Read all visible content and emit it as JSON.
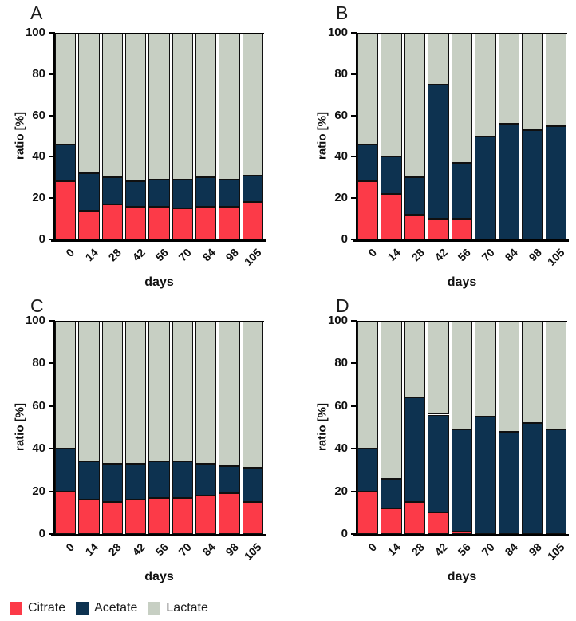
{
  "legend": {
    "items": [
      {
        "label": "Citrate",
        "color": "#fc3a48"
      },
      {
        "label": "Acetate",
        "color": "#0d3250"
      },
      {
        "label": "Lactate",
        "color": "#c7cfc3"
      }
    ]
  },
  "chart_data": [
    {
      "type": "bar",
      "stacked": true,
      "title": "A",
      "categories": [
        "0",
        "14",
        "28",
        "42",
        "56",
        "70",
        "84",
        "98",
        "105"
      ],
      "xlabel": "days",
      "ylabel": "ratio [%]",
      "ylim": [
        0,
        100
      ],
      "yticks": [
        0,
        20,
        40,
        60,
        80,
        100
      ],
      "grid": false,
      "legend_position": "figure-bottom",
      "series": [
        {
          "name": "Citrate",
          "color": "#fc3a48",
          "values": [
            28,
            14,
            17,
            16,
            16,
            15,
            16,
            16,
            18
          ]
        },
        {
          "name": "Acetate",
          "color": "#0d3250",
          "values": [
            18,
            18,
            13,
            12,
            13,
            14,
            14,
            13,
            13
          ]
        },
        {
          "name": "Lactate",
          "color": "#c7cfc3",
          "values": [
            54,
            68,
            70,
            72,
            71,
            71,
            70,
            71,
            69
          ]
        }
      ]
    },
    {
      "type": "bar",
      "stacked": true,
      "title": "B",
      "categories": [
        "0",
        "14",
        "28",
        "42",
        "56",
        "70",
        "84",
        "98",
        "105"
      ],
      "xlabel": "days",
      "ylabel": "ratio [%]",
      "ylim": [
        0,
        100
      ],
      "yticks": [
        0,
        20,
        40,
        60,
        80,
        100
      ],
      "grid": false,
      "legend_position": "figure-bottom",
      "series": [
        {
          "name": "Citrate",
          "color": "#fc3a48",
          "values": [
            28,
            22,
            12,
            10,
            10,
            0,
            0,
            0,
            0
          ]
        },
        {
          "name": "Acetate",
          "color": "#0d3250",
          "values": [
            18,
            18,
            18,
            65,
            27,
            50,
            56,
            53,
            55
          ]
        },
        {
          "name": "Lactate",
          "color": "#c7cfc3",
          "values": [
            54,
            60,
            70,
            25,
            63,
            50,
            44,
            47,
            45
          ]
        }
      ]
    },
    {
      "type": "bar",
      "stacked": true,
      "title": "C",
      "categories": [
        "0",
        "14",
        "28",
        "42",
        "56",
        "70",
        "84",
        "98",
        "105"
      ],
      "xlabel": "days",
      "ylabel": "ratio [%]",
      "ylim": [
        0,
        100
      ],
      "yticks": [
        0,
        20,
        40,
        60,
        80,
        100
      ],
      "grid": false,
      "legend_position": "figure-bottom",
      "series": [
        {
          "name": "Citrate",
          "color": "#fc3a48",
          "values": [
            20,
            16,
            15,
            16,
            17,
            17,
            18,
            19,
            15
          ]
        },
        {
          "name": "Acetate",
          "color": "#0d3250",
          "values": [
            20,
            18,
            18,
            17,
            17,
            17,
            15,
            13,
            16
          ]
        },
        {
          "name": "Lactate",
          "color": "#c7cfc3",
          "values": [
            60,
            66,
            67,
            67,
            66,
            66,
            67,
            68,
            69
          ]
        }
      ]
    },
    {
      "type": "bar",
      "stacked": true,
      "title": "D",
      "categories": [
        "0",
        "14",
        "28",
        "42",
        "56",
        "70",
        "84",
        "98",
        "105"
      ],
      "xlabel": "days",
      "ylabel": "ratio [%]",
      "ylim": [
        0,
        100
      ],
      "yticks": [
        0,
        20,
        40,
        60,
        80,
        100
      ],
      "grid": false,
      "legend_position": "figure-bottom",
      "series": [
        {
          "name": "Citrate",
          "color": "#fc3a48",
          "values": [
            20,
            12,
            15,
            10,
            1,
            0,
            0,
            0,
            0
          ]
        },
        {
          "name": "Acetate",
          "color": "#0d3250",
          "values": [
            20,
            14,
            49,
            46,
            48,
            55,
            48,
            52,
            49
          ]
        },
        {
          "name": "Lactate",
          "color": "#c7cfc3",
          "values": [
            60,
            74,
            36,
            44,
            51,
            45,
            52,
            48,
            51
          ]
        }
      ]
    }
  ]
}
